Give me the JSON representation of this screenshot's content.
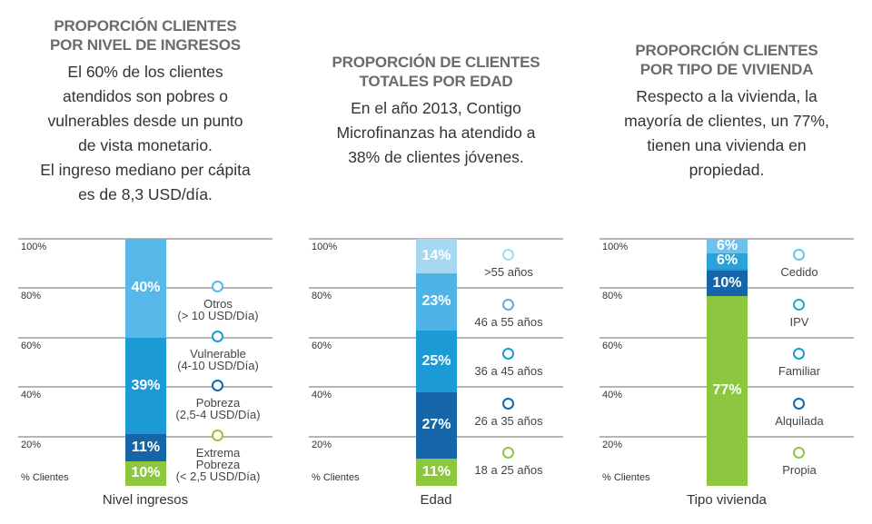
{
  "chart_data": [
    {
      "type": "stacked_bar",
      "title": "PROPORCIÓN CLIENTES POR NIVEL DE INGRESOS",
      "description": [
        "El 60% de los clientes atendidos son pobres o vulnerables desde un punto de vista monetario.",
        "El ingreso mediano per cápita es de 8,3 USD/día."
      ],
      "categories": [
        "Nivel ingresos"
      ],
      "ylabel": "% Clientes",
      "ylim": [
        0,
        100
      ],
      "yticks": [
        {
          "value": 20,
          "label": "20%"
        },
        {
          "value": 40,
          "label": "40%"
        },
        {
          "value": 60,
          "label": "60%"
        },
        {
          "value": 80,
          "label": "80%"
        },
        {
          "value": 100,
          "label": "100%"
        }
      ],
      "grid": true,
      "series": [
        {
          "name": "Extrema\nPobreza\n(< 2,5 USD/Día)",
          "color": "#8dc63f",
          "values": [
            10
          ],
          "value_labels": [
            "10%"
          ]
        },
        {
          "name": "Pobreza\n(2,5-4 USD/Día)",
          "color": "#1565a8",
          "values": [
            11
          ],
          "value_labels": [
            "11%"
          ]
        },
        {
          "name": "Vulnerable\n(4-10 USD/Día)",
          "color": "#1c9ad6",
          "values": [
            39
          ],
          "value_labels": [
            "39%"
          ]
        },
        {
          "name": "Otros\n(> 10 USD/Día)",
          "color": "#55b8e8",
          "values": [
            40
          ],
          "value_labels": [
            "40%"
          ]
        }
      ]
    },
    {
      "type": "stacked_bar",
      "title": "PROPORCIÓN DE CLIENTES TOTALES POR EDAD",
      "description": [
        "En el año 2013, Contigo Microfinanzas ha atendido a 38% de clientes jóvenes."
      ],
      "categories": [
        "Edad"
      ],
      "ylabel": "% Clientes",
      "ylim": [
        0,
        100
      ],
      "yticks": [
        {
          "value": 20,
          "label": "20%"
        },
        {
          "value": 40,
          "label": "40%"
        },
        {
          "value": 60,
          "label": "60%"
        },
        {
          "value": 80,
          "label": "80%"
        },
        {
          "value": 100,
          "label": "100%"
        }
      ],
      "grid": true,
      "series": [
        {
          "name": "18 a 25 años",
          "color": "#8dc63f",
          "values": [
            11
          ],
          "value_labels": [
            "11%"
          ]
        },
        {
          "name": "26 a 35 años",
          "color": "#1565a8",
          "values": [
            27
          ],
          "value_labels": [
            "27%"
          ]
        },
        {
          "name": "36 a 45 años",
          "color": "#1c9ad6",
          "values": [
            25
          ],
          "value_labels": [
            "25%"
          ]
        },
        {
          "name": "46 a 55 años",
          "color": "#4fb3e6",
          "values": [
            23
          ],
          "value_labels": [
            "23%"
          ]
        },
        {
          "name": ">55 años",
          "color": "#a6d8f2",
          "values": [
            14
          ],
          "value_labels": [
            "14%"
          ]
        }
      ]
    },
    {
      "type": "stacked_bar",
      "title": "PROPORCIÓN CLIENTES POR TIPO DE VIVIENDA",
      "description": [
        "Respecto a la vivienda, la mayoría de clientes, un 77%, tienen una vivienda en propiedad."
      ],
      "categories": [
        "Tipo vivienda"
      ],
      "ylabel": "% Clientes",
      "ylim": [
        0,
        100
      ],
      "yticks": [
        {
          "value": 20,
          "label": "20%"
        },
        {
          "value": 40,
          "label": "40%"
        },
        {
          "value": 60,
          "label": "60%"
        },
        {
          "value": 80,
          "label": "80%"
        },
        {
          "value": 100,
          "label": "100%"
        }
      ],
      "grid": true,
      "series": [
        {
          "name": "Propia",
          "color": "#8dc63f",
          "values": [
            77
          ],
          "value_labels": [
            "77%"
          ]
        },
        {
          "name": "Alquilada",
          "color": "#1565a8",
          "values": [
            10
          ],
          "value_labels": [
            "10%"
          ]
        },
        {
          "name": "Familiar",
          "color": "#1c9ad6",
          "values": [
            1
          ],
          "value_labels": [
            null
          ]
        },
        {
          "name": "IPV",
          "color": "#2aa3db",
          "values": [
            6
          ],
          "value_labels": [
            "6%"
          ]
        },
        {
          "name": "Cedido",
          "color": "#6cc2ec",
          "values": [
            6
          ],
          "value_labels": [
            "6%"
          ]
        }
      ]
    }
  ]
}
